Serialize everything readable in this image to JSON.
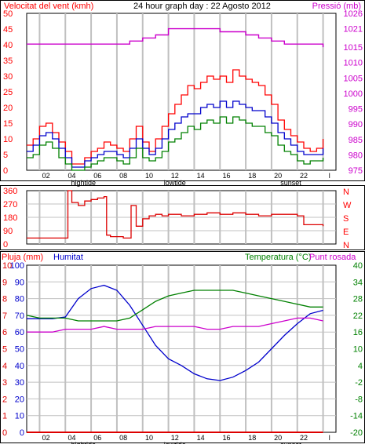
{
  "top_bar": {
    "wind_label": "Velocitat del vent (kmh)",
    "title": "24 hour graph day : 22 Agosto 2012",
    "pressure_label": "Pressió (mb)"
  },
  "middle_bar": {
    "direction_letters": [
      "N",
      "W",
      "S",
      "E",
      "N"
    ]
  },
  "bottom_bar": {
    "rain_label": "Pluja (mm)",
    "humidity_label": "Humitat",
    "temp_label": "Temperatura (°C)",
    "dew_label": "Punt rosada"
  },
  "colors": {
    "wind_gust": "#ff0000",
    "wind_avg": "#0000cc",
    "wind_min": "#008000",
    "pressure": "#cc00cc",
    "direction": "#dd0000",
    "humidity": "#0000cc",
    "temperature": "#008000",
    "dew_point": "#cc00cc",
    "rain": "#dd0000",
    "left_axis": "#ff0000",
    "grid": "#c0c0c0"
  },
  "chart_data": [
    {
      "type": "line",
      "id": "wind-pressure",
      "x_labels": [
        "02",
        "04",
        "06",
        "08",
        "10",
        "12",
        "14",
        "16",
        "18",
        "20",
        "22",
        "l"
      ],
      "x_annotations": [
        {
          "text": "hightide",
          "at_hour": 4.4
        },
        {
          "text": "lowtide",
          "at_hour": 11.5
        },
        {
          "text": "sunset",
          "at_hour": 20.5
        }
      ],
      "y_left": {
        "label": "Velocitat del vent (kmh)",
        "min": 0,
        "max": 50,
        "ticks": [
          0,
          5,
          10,
          15,
          20,
          25,
          30,
          35,
          40,
          45,
          50
        ]
      },
      "y_right": {
        "label": "Pressió (mb)",
        "min": 975,
        "max": 1026,
        "ticks": [
          975,
          980,
          985,
          990,
          995,
          1000,
          1005,
          1010,
          1015,
          1021,
          1026
        ]
      },
      "series": [
        {
          "key": "wind_gust",
          "axis": "left",
          "x": [
            0,
            0.5,
            1,
            1.5,
            2,
            2.5,
            3,
            3.5,
            4,
            4.5,
            5,
            5.5,
            6,
            6.5,
            7,
            7.5,
            8,
            8.5,
            9,
            9.5,
            10,
            10.5,
            11,
            11.5,
            12,
            12.5,
            13,
            13.5,
            14,
            14.5,
            15,
            15.5,
            16,
            16.5,
            17,
            17.5,
            18,
            18.5,
            19,
            19.5,
            20,
            20.5,
            21,
            21.5,
            22,
            22.5,
            23
          ],
          "values": [
            8,
            10,
            14,
            15,
            12,
            9,
            6,
            2,
            2,
            4,
            6,
            7,
            9,
            8,
            7,
            6,
            10,
            14,
            9,
            6,
            10,
            14,
            18,
            21,
            24,
            27,
            26,
            28,
            30,
            29,
            30,
            28,
            32,
            30,
            29,
            28,
            27,
            24,
            21,
            16,
            13,
            11,
            9,
            7,
            6,
            7,
            10
          ]
        },
        {
          "key": "wind_avg",
          "axis": "left",
          "x": [
            0,
            0.5,
            1,
            1.5,
            2,
            2.5,
            3,
            3.5,
            4,
            4.5,
            5,
            5.5,
            6,
            6.5,
            7,
            7.5,
            8,
            8.5,
            9,
            9.5,
            10,
            10.5,
            11,
            11.5,
            12,
            12.5,
            13,
            13.5,
            14,
            14.5,
            15,
            15.5,
            16,
            16.5,
            17,
            17.5,
            18,
            18.5,
            19,
            19.5,
            20,
            20.5,
            21,
            21.5,
            22,
            22.5,
            23
          ],
          "values": [
            6,
            8,
            11,
            12,
            10,
            7,
            4,
            1,
            1,
            3,
            4,
            5,
            6,
            6,
            5,
            4,
            7,
            10,
            7,
            5,
            7,
            10,
            13,
            15,
            17,
            18,
            18,
            20,
            21,
            20,
            22,
            20,
            22,
            21,
            20,
            19,
            19,
            17,
            15,
            12,
            10,
            8,
            6,
            5,
            5,
            5,
            7
          ]
        },
        {
          "key": "wind_min",
          "axis": "left",
          "x": [
            0,
            0.5,
            1,
            1.5,
            2,
            2.5,
            3,
            3.5,
            4,
            4.5,
            5,
            5.5,
            6,
            6.5,
            7,
            7.5,
            8,
            8.5,
            9,
            9.5,
            10,
            10.5,
            11,
            11.5,
            12,
            12.5,
            13,
            13.5,
            14,
            14.5,
            15,
            15.5,
            16,
            16.5,
            17,
            17.5,
            18,
            18.5,
            19,
            19.5,
            20,
            20.5,
            21,
            21.5,
            22,
            22.5,
            23
          ],
          "values": [
            4,
            5,
            8,
            9,
            7,
            4,
            2,
            0,
            0,
            1,
            2,
            3,
            4,
            4,
            3,
            2,
            4,
            7,
            4,
            3,
            4,
            6,
            9,
            10,
            12,
            14,
            13,
            15,
            16,
            15,
            17,
            15,
            17,
            16,
            15,
            14,
            14,
            12,
            11,
            8,
            6,
            5,
            3,
            2,
            3,
            3,
            4
          ]
        },
        {
          "key": "pressure",
          "axis": "right",
          "x": [
            0,
            1,
            2,
            3,
            4,
            5,
            6,
            7,
            8,
            9,
            10,
            11,
            12,
            13,
            14,
            15,
            16,
            17,
            18,
            19,
            20,
            21,
            22,
            23
          ],
          "values": [
            1016,
            1016,
            1016,
            1016,
            1016,
            1016,
            1016,
            1016,
            1017,
            1018,
            1019,
            1021,
            1021,
            1021,
            1021,
            1020,
            1020,
            1019,
            1018,
            1017,
            1016,
            1016,
            1016,
            1015
          ]
        }
      ]
    },
    {
      "type": "line",
      "id": "wind-direction",
      "x_labels": [
        "02",
        "04",
        "06",
        "08",
        "10",
        "12",
        "14",
        "16",
        "18",
        "20",
        "22",
        "l"
      ],
      "y_left": {
        "min": 0,
        "max": 360,
        "ticks": [
          0,
          90,
          180,
          270,
          360
        ]
      },
      "y_right_letters": [
        "N",
        "W",
        "S",
        "E",
        "N"
      ],
      "series": [
        {
          "key": "direction",
          "x": [
            0,
            0.5,
            1,
            1.5,
            2,
            2.5,
            3,
            3.2,
            3.5,
            4,
            4.5,
            5,
            5.5,
            6,
            6.2,
            6.5,
            7,
            7.5,
            8,
            8.1,
            8.5,
            9,
            9.5,
            10,
            10.5,
            11,
            12,
            13,
            14,
            15,
            16,
            17,
            18,
            19,
            20,
            21,
            21.5,
            22,
            23
          ],
          "values": [
            40,
            40,
            40,
            40,
            40,
            40,
            40,
            360,
            280,
            260,
            290,
            300,
            310,
            320,
            60,
            50,
            50,
            40,
            40,
            260,
            120,
            170,
            190,
            200,
            190,
            200,
            190,
            200,
            210,
            200,
            210,
            200,
            190,
            200,
            200,
            190,
            130,
            130,
            120
          ]
        }
      ]
    },
    {
      "type": "line",
      "id": "humidity-temperature",
      "x_labels": [
        "02",
        "04",
        "06",
        "08",
        "10",
        "12",
        "14",
        "16",
        "18",
        "20",
        "22",
        "l"
      ],
      "x_annotations": [
        {
          "text": "hightide",
          "at_hour": 4.4
        },
        {
          "text": "lowtide",
          "at_hour": 11.5
        },
        {
          "text": "sunset",
          "at_hour": 20.5
        }
      ],
      "y_rain": {
        "label": "Pluja (mm)",
        "min": 0,
        "max": 10,
        "ticks": [
          0,
          1,
          2,
          3,
          4,
          5,
          6,
          7,
          8,
          9,
          10
        ]
      },
      "y_humidity": {
        "label": "Humitat",
        "min": 0,
        "max": 100,
        "ticks": [
          0,
          10,
          20,
          30,
          40,
          50,
          60,
          70,
          80,
          90,
          100
        ]
      },
      "y_temp": {
        "label": "Temperatura (°C)",
        "min": -20,
        "max": 40,
        "ticks": [
          -20,
          -14,
          -8,
          -2,
          4,
          10,
          16,
          22,
          28,
          34,
          40
        ]
      },
      "series": [
        {
          "key": "humidity",
          "axis": "humidity",
          "x": [
            0,
            1,
            2,
            3,
            4,
            5,
            6,
            7,
            8,
            9,
            10,
            11,
            12,
            13,
            14,
            15,
            16,
            17,
            18,
            19,
            20,
            21,
            22,
            23
          ],
          "values": [
            68,
            68,
            68,
            69,
            80,
            86,
            88,
            85,
            76,
            64,
            52,
            44,
            40,
            35,
            32,
            31,
            33,
            37,
            42,
            50,
            58,
            65,
            71,
            73
          ]
        },
        {
          "key": "temperature",
          "axis": "temp",
          "x": [
            0,
            1,
            2,
            3,
            4,
            5,
            6,
            7,
            8,
            9,
            10,
            11,
            12,
            13,
            14,
            15,
            16,
            17,
            18,
            19,
            20,
            21,
            22,
            23
          ],
          "values": [
            22,
            21,
            21,
            21,
            20,
            20,
            20,
            20,
            21,
            24,
            27,
            29,
            30,
            31,
            31,
            31,
            31,
            30,
            29,
            28,
            27,
            26,
            25,
            25
          ]
        },
        {
          "key": "dew_point",
          "axis": "temp",
          "x": [
            0,
            1,
            2,
            3,
            4,
            5,
            6,
            7,
            8,
            9,
            10,
            11,
            12,
            13,
            14,
            15,
            16,
            17,
            18,
            19,
            20,
            21,
            22,
            23
          ],
          "values": [
            16,
            16,
            16,
            17,
            17,
            17,
            18,
            17,
            17,
            17,
            18,
            18,
            18,
            18,
            17,
            17,
            18,
            18,
            18,
            19,
            20,
            21,
            21,
            20
          ]
        },
        {
          "key": "rain",
          "axis": "rain",
          "x": [
            0,
            23
          ],
          "values": [
            0,
            0
          ]
        }
      ]
    }
  ]
}
